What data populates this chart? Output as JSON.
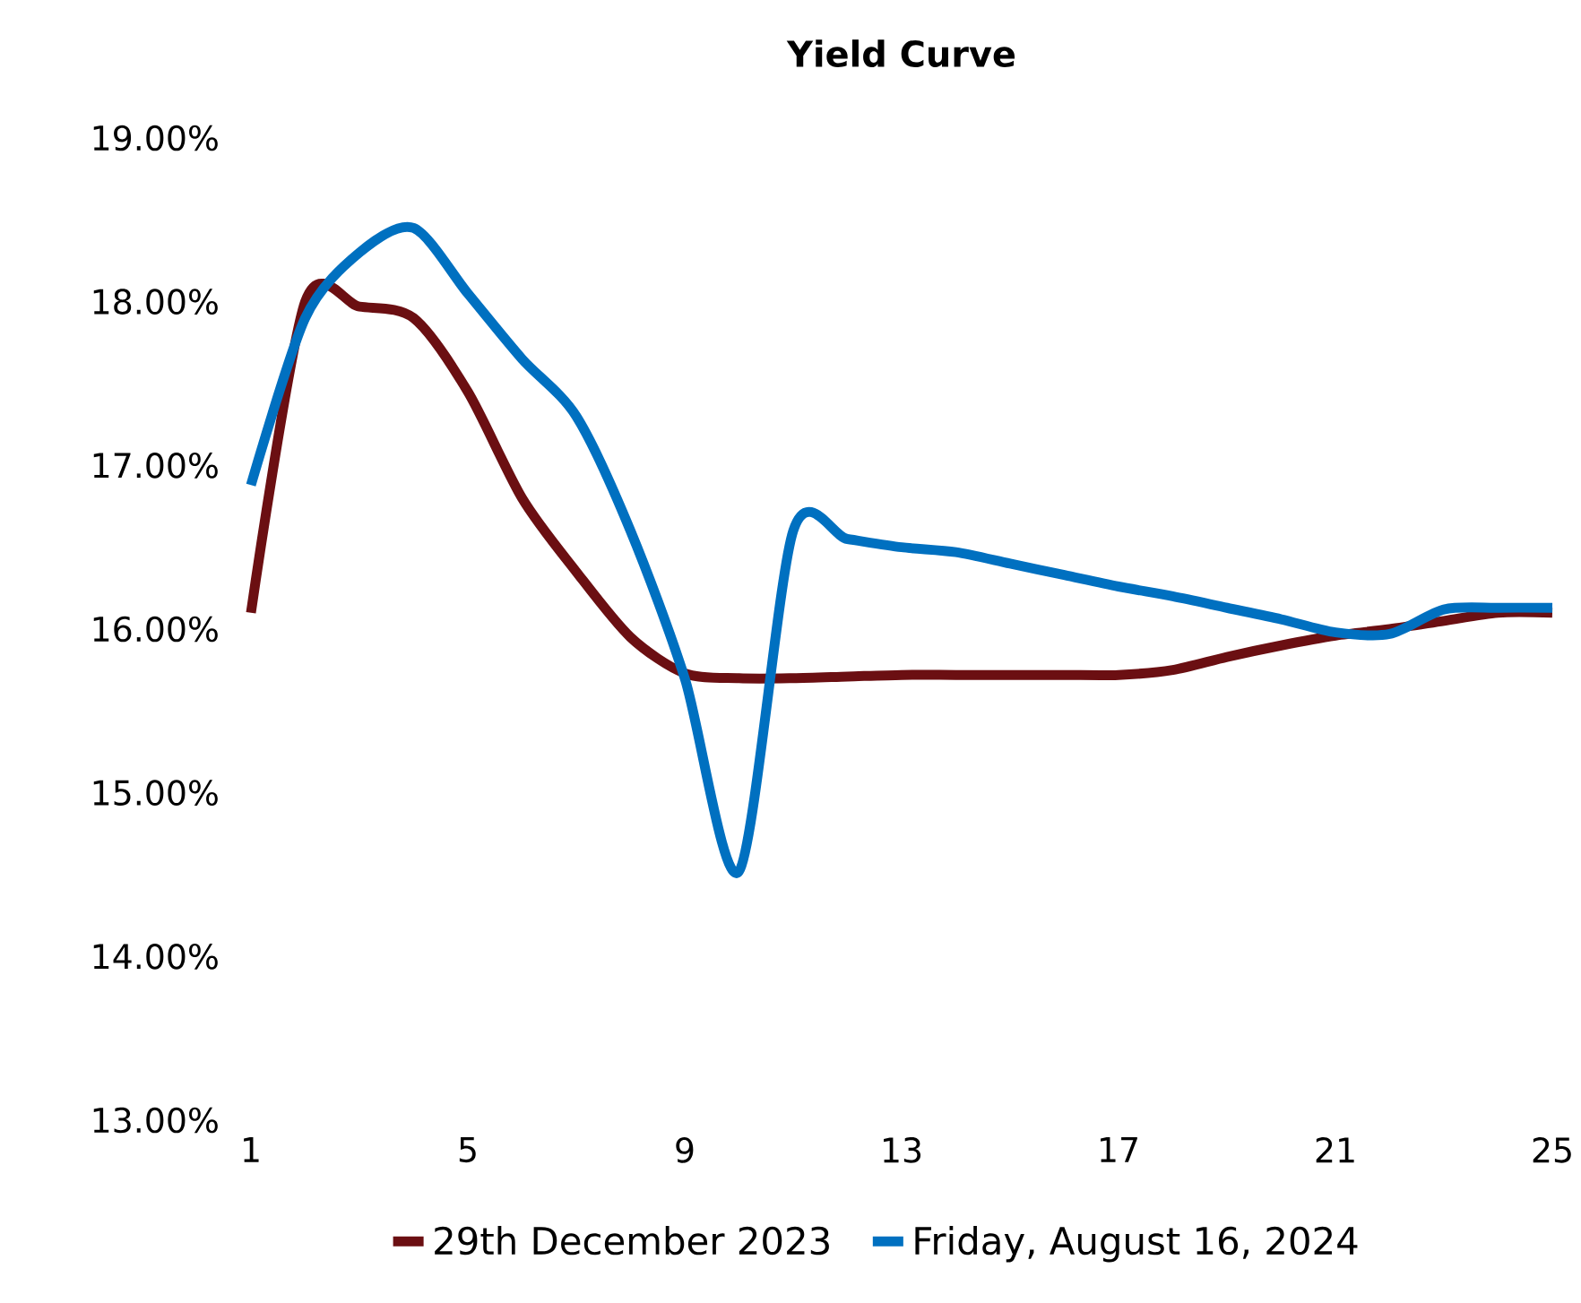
{
  "chart_data": {
    "type": "line",
    "title": "Yield Curve",
    "x": [
      1,
      2,
      3,
      4,
      5,
      6,
      7,
      8,
      9,
      10,
      11,
      12,
      13,
      14,
      15,
      16,
      17,
      18,
      19,
      20,
      21,
      22,
      23,
      24,
      25
    ],
    "series": [
      {
        "name": "29th December 2023",
        "color": "#6b0f12",
        "values": [
          16.1,
          18.0,
          17.97,
          17.9,
          17.45,
          16.8,
          16.35,
          15.95,
          15.73,
          15.7,
          15.7,
          15.71,
          15.72,
          15.72,
          15.72,
          15.72,
          15.72,
          15.75,
          15.83,
          15.9,
          15.96,
          16.0,
          16.05,
          16.1,
          16.1
        ]
      },
      {
        "name": "Friday, August 16, 2024",
        "color": "#0070c0",
        "values": [
          16.88,
          17.9,
          18.3,
          18.45,
          18.05,
          17.65,
          17.3,
          16.6,
          15.7,
          14.52,
          16.6,
          16.55,
          16.5,
          16.47,
          16.4,
          16.33,
          16.26,
          16.2,
          16.13,
          16.06,
          15.98,
          15.97,
          16.12,
          16.13,
          16.13
        ]
      }
    ],
    "xlim": [
      1,
      25
    ],
    "xticks": [
      1,
      5,
      9,
      13,
      17,
      21,
      25
    ],
    "ylim": [
      13,
      19
    ],
    "yticks": [
      {
        "value": 13,
        "label": "13.00%"
      },
      {
        "value": 14,
        "label": "14.00%"
      },
      {
        "value": 15,
        "label": "15.00%"
      },
      {
        "value": 16,
        "label": "16.00%"
      },
      {
        "value": 17,
        "label": "17.00%"
      },
      {
        "value": 18,
        "label": "18.00%"
      },
      {
        "value": 19,
        "label": "19.00%"
      }
    ],
    "grid": false,
    "legend": "bottom",
    "line_style": "solid"
  }
}
